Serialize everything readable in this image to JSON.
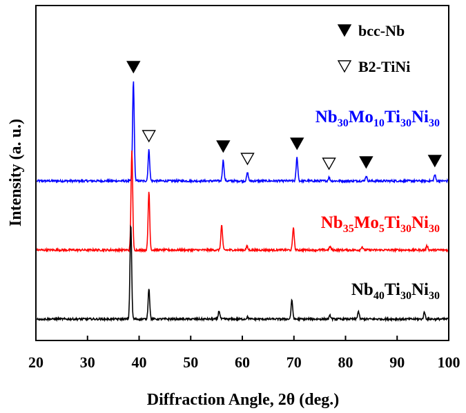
{
  "chart_data": {
    "type": "line",
    "xlabel": "Diffraction Angle, 2θ (deg.)",
    "ylabel": "Intensity (a. u.)",
    "xlim": [
      20,
      100
    ],
    "xticks": [
      "20",
      "30",
      "40",
      "50",
      "60",
      "70",
      "80",
      "90",
      "100"
    ],
    "legend": [
      {
        "marker": "filled-triangle",
        "label": "bcc-Nb"
      },
      {
        "marker": "open-triangle",
        "label": "B2-TiNi"
      }
    ],
    "series": [
      {
        "label_parts": [
          [
            "Nb",
            ""
          ],
          [
            "30",
            "sub"
          ],
          [
            "Mo",
            ""
          ],
          [
            "10",
            "sub"
          ],
          [
            "Ti",
            ""
          ],
          [
            "30",
            "sub"
          ],
          [
            "Ni",
            ""
          ],
          [
            "30",
            "sub"
          ]
        ],
        "color": "#0000ff",
        "offset": 2.0,
        "peaks": [
          [
            38.9,
            1.45
          ],
          [
            41.9,
            0.45
          ],
          [
            56.3,
            0.3
          ],
          [
            61.0,
            0.12
          ],
          [
            70.6,
            0.34
          ],
          [
            76.8,
            0.05
          ],
          [
            84.0,
            0.07
          ],
          [
            97.3,
            0.09
          ]
        ]
      },
      {
        "label_parts": [
          [
            "Nb",
            ""
          ],
          [
            "35",
            "sub"
          ],
          [
            "Mo",
            ""
          ],
          [
            "5",
            "sub"
          ],
          [
            "Ti",
            ""
          ],
          [
            "30",
            "sub"
          ],
          [
            "Ni",
            ""
          ],
          [
            "30",
            "sub"
          ]
        ],
        "color": "#ff0000",
        "offset": 1.0,
        "peaks": [
          [
            38.6,
            1.45
          ],
          [
            41.9,
            0.85
          ],
          [
            56.0,
            0.36
          ],
          [
            60.9,
            0.05
          ],
          [
            69.9,
            0.33
          ],
          [
            77.0,
            0.05
          ],
          [
            83.2,
            0.05
          ],
          [
            95.8,
            0.06
          ]
        ]
      },
      {
        "label_parts": [
          [
            "Nb",
            ""
          ],
          [
            "40",
            "sub"
          ],
          [
            "Ti",
            ""
          ],
          [
            "30",
            "sub"
          ],
          [
            "Ni",
            ""
          ],
          [
            "30",
            "sub"
          ]
        ],
        "color": "#000000",
        "offset": 0.0,
        "peaks": [
          [
            38.4,
            1.38
          ],
          [
            41.9,
            0.45
          ],
          [
            55.5,
            0.12
          ],
          [
            61.0,
            0.03
          ],
          [
            69.6,
            0.27
          ],
          [
            77.0,
            0.05
          ],
          [
            82.5,
            0.11
          ],
          [
            95.3,
            0.1
          ]
        ]
      }
    ],
    "phase_markers": [
      {
        "phase": "bcc-Nb",
        "x": [
          38.9,
          56.3,
          70.6,
          84.0,
          97.3
        ]
      },
      {
        "phase": "B2-TiNi",
        "x": [
          41.9,
          61.0,
          76.8
        ]
      }
    ]
  }
}
